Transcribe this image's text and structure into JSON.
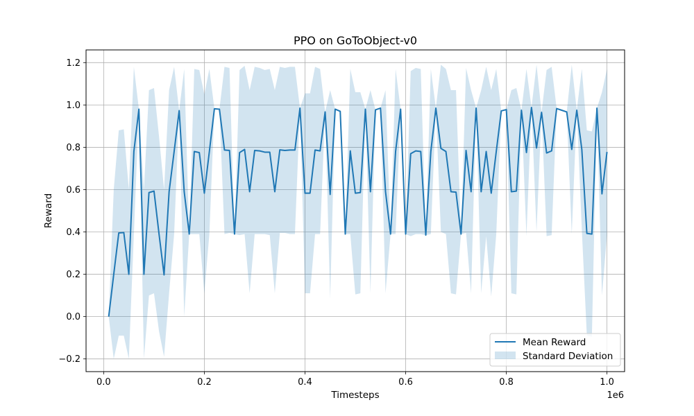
{
  "chart_data": {
    "type": "line",
    "title": "PPO on GoToObject-v0",
    "xlabel": "Timesteps",
    "ylabel": "Reward",
    "x_offset_label": "1e6",
    "xlim": [
      -0.035,
      1.035
    ],
    "ylim": [
      -0.26,
      1.26
    ],
    "x_ticks": [
      0.0,
      0.2,
      0.4,
      0.6,
      0.8,
      1.0
    ],
    "x_tick_labels": [
      "0.0",
      "0.2",
      "0.4",
      "0.6",
      "0.8",
      "1.0"
    ],
    "y_ticks": [
      -0.2,
      0.0,
      0.2,
      0.4,
      0.6,
      0.8,
      1.0,
      1.2
    ],
    "y_tick_labels": [
      "−0.2",
      "0.0",
      "0.2",
      "0.4",
      "0.6",
      "0.8",
      "1.0",
      "1.2"
    ],
    "grid": true,
    "legend_position": "bottom-right",
    "colors": {
      "line": "#1f77b4",
      "band": "#1f77b4",
      "band_opacity": 0.2
    },
    "x": [
      0.01,
      0.02,
      0.03,
      0.04,
      0.05,
      0.06,
      0.07,
      0.08,
      0.09,
      0.1,
      0.11,
      0.12,
      0.13,
      0.14,
      0.15,
      0.16,
      0.17,
      0.18,
      0.19,
      0.2,
      0.21,
      0.22,
      0.23,
      0.24,
      0.25,
      0.26,
      0.27,
      0.28,
      0.29,
      0.3,
      0.31,
      0.32,
      0.33,
      0.34,
      0.35,
      0.36,
      0.37,
      0.38,
      0.39,
      0.4,
      0.41,
      0.42,
      0.43,
      0.44,
      0.45,
      0.46,
      0.47,
      0.48,
      0.49,
      0.5,
      0.51,
      0.52,
      0.53,
      0.54,
      0.55,
      0.56,
      0.57,
      0.58,
      0.59,
      0.6,
      0.61,
      0.62,
      0.63,
      0.64,
      0.65,
      0.66,
      0.67,
      0.68,
      0.69,
      0.7,
      0.71,
      0.72,
      0.73,
      0.74,
      0.75,
      0.76,
      0.77,
      0.78,
      0.79,
      0.8,
      0.81,
      0.82,
      0.83,
      0.84,
      0.85,
      0.86,
      0.87,
      0.88,
      0.89,
      0.9,
      0.91,
      0.92,
      0.93,
      0.94,
      0.95,
      0.96,
      0.97,
      0.98,
      0.99,
      1.0
    ],
    "series": [
      {
        "name": "Mean Reward",
        "kind": "line",
        "values": [
          0.0,
          0.2,
          0.395,
          0.397,
          0.2,
          0.78,
          0.98,
          0.2,
          0.586,
          0.593,
          0.39,
          0.197,
          0.59,
          0.78,
          0.973,
          0.59,
          0.39,
          0.78,
          0.775,
          0.583,
          0.78,
          0.982,
          0.98,
          0.787,
          0.785,
          0.39,
          0.775,
          0.79,
          0.59,
          0.785,
          0.783,
          0.777,
          0.777,
          0.59,
          0.788,
          0.785,
          0.787,
          0.787,
          0.985,
          0.583,
          0.583,
          0.787,
          0.783,
          0.967,
          0.577,
          0.98,
          0.97,
          0.39,
          0.783,
          0.583,
          0.586,
          0.98,
          0.59,
          0.977,
          0.985,
          0.59,
          0.39,
          0.78,
          0.98,
          0.39,
          0.77,
          0.783,
          0.78,
          0.385,
          0.78,
          0.985,
          0.795,
          0.78,
          0.59,
          0.588,
          0.39,
          0.785,
          0.59,
          0.985,
          0.59,
          0.78,
          0.583,
          0.78,
          0.972,
          0.978,
          0.59,
          0.593,
          0.975,
          0.775,
          0.988,
          0.797,
          0.965,
          0.773,
          0.783,
          0.983,
          0.975,
          0.967,
          0.79,
          0.975,
          0.79,
          0.393,
          0.39,
          0.985,
          0.58,
          0.778
        ]
      },
      {
        "name": "Standard Deviation",
        "kind": "band",
        "upper": [
          0.0,
          0.6,
          0.88,
          0.885,
          0.6,
          1.18,
          0.98,
          0.6,
          1.07,
          1.08,
          0.85,
          0.6,
          1.07,
          1.18,
          0.973,
          1.17,
          0.39,
          1.17,
          1.165,
          1.05,
          1.17,
          0.982,
          0.98,
          1.18,
          1.175,
          0.39,
          1.165,
          1.185,
          1.07,
          1.18,
          1.175,
          1.165,
          1.17,
          1.07,
          1.18,
          1.175,
          1.18,
          1.18,
          0.985,
          1.055,
          1.055,
          1.18,
          1.17,
          0.967,
          1.07,
          0.98,
          0.97,
          0.39,
          1.17,
          1.06,
          1.06,
          0.98,
          1.07,
          0.977,
          0.985,
          1.07,
          0.39,
          1.17,
          0.98,
          0.39,
          1.16,
          1.175,
          1.17,
          0.385,
          1.17,
          0.985,
          1.19,
          1.17,
          1.07,
          1.07,
          0.39,
          1.175,
          1.07,
          0.985,
          1.07,
          1.18,
          1.07,
          1.17,
          0.972,
          0.978,
          1.07,
          1.08,
          0.975,
          1.17,
          0.988,
          1.19,
          0.965,
          1.165,
          1.18,
          0.983,
          0.975,
          0.967,
          1.19,
          0.975,
          1.17,
          0.88,
          0.875,
          0.985,
          1.06,
          1.17
        ],
        "lower": [
          0.0,
          -0.2,
          -0.09,
          -0.09,
          -0.2,
          0.39,
          0.98,
          -0.2,
          0.1,
          0.11,
          -0.07,
          -0.19,
          0.11,
          0.39,
          0.973,
          0.0,
          0.39,
          0.39,
          0.39,
          0.11,
          0.39,
          0.982,
          0.98,
          0.39,
          0.395,
          0.39,
          0.385,
          0.39,
          0.11,
          0.39,
          0.39,
          0.39,
          0.385,
          0.11,
          0.395,
          0.395,
          0.39,
          0.39,
          0.985,
          0.11,
          0.11,
          0.39,
          0.39,
          0.967,
          0.085,
          0.98,
          0.97,
          0.39,
          0.39,
          0.105,
          0.11,
          0.98,
          0.11,
          0.977,
          0.985,
          0.11,
          0.39,
          0.39,
          0.98,
          0.39,
          0.38,
          0.39,
          0.39,
          0.385,
          0.39,
          0.985,
          0.4,
          0.39,
          0.11,
          0.105,
          0.39,
          0.395,
          0.11,
          0.985,
          0.11,
          0.38,
          0.095,
          0.39,
          0.972,
          0.978,
          0.11,
          0.105,
          0.975,
          0.38,
          0.988,
          0.4,
          0.965,
          0.38,
          0.385,
          0.983,
          0.975,
          0.967,
          0.39,
          0.975,
          0.41,
          -0.09,
          -0.095,
          0.985,
          0.1,
          0.385
        ]
      }
    ]
  }
}
